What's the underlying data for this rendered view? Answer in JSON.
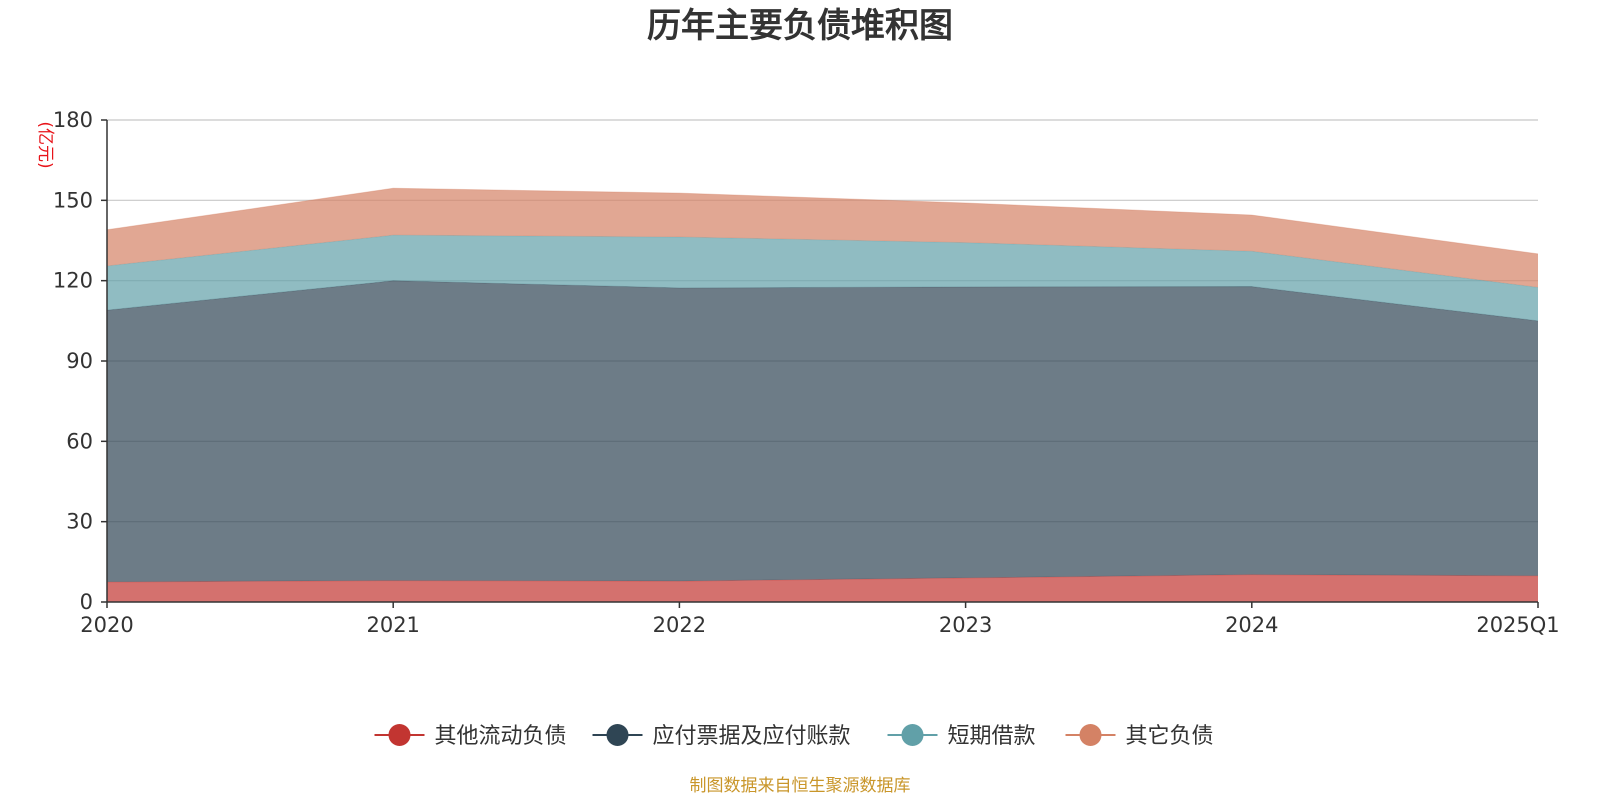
{
  "colors": {
    "other_current": "#c23531",
    "payables": "#2f4554",
    "short_loans": "#61a0a8",
    "other_liab": "#d48265",
    "unit": "#e8141a",
    "source": "#c9962a",
    "text": "#333333",
    "grid": "#c8c8c8",
    "axis": "#333333"
  },
  "chart_data": {
    "type": "area",
    "stacked": true,
    "title": "历年主要负债堆积图",
    "ylabel": "(亿元)",
    "xlabel": "",
    "categories": [
      "2020",
      "2021",
      "2022",
      "2023",
      "2024",
      "2025Q1"
    ],
    "ylim": [
      0,
      180
    ],
    "yticks": [
      0,
      30,
      60,
      90,
      120,
      150,
      180
    ],
    "grid": true,
    "legend_position": "bottom-center",
    "series": [
      {
        "name": "其他流动负债",
        "color_key": "other_current",
        "values": [
          7.5,
          8.0,
          7.8,
          9.0,
          10.2,
          9.8
        ]
      },
      {
        "name": "应付票据及应付账款",
        "color_key": "payables",
        "values": [
          101.5,
          112.0,
          109.5,
          108.7,
          107.6,
          95.2
        ]
      },
      {
        "name": "短期借款",
        "color_key": "short_loans",
        "values": [
          16.5,
          17.0,
          19.0,
          16.5,
          13.2,
          12.5
        ]
      },
      {
        "name": "其它负债",
        "color_key": "other_liab",
        "values": [
          13.5,
          17.5,
          16.4,
          14.8,
          13.5,
          12.5
        ]
      }
    ]
  },
  "source_note": "制图数据来自恒生聚源数据库"
}
